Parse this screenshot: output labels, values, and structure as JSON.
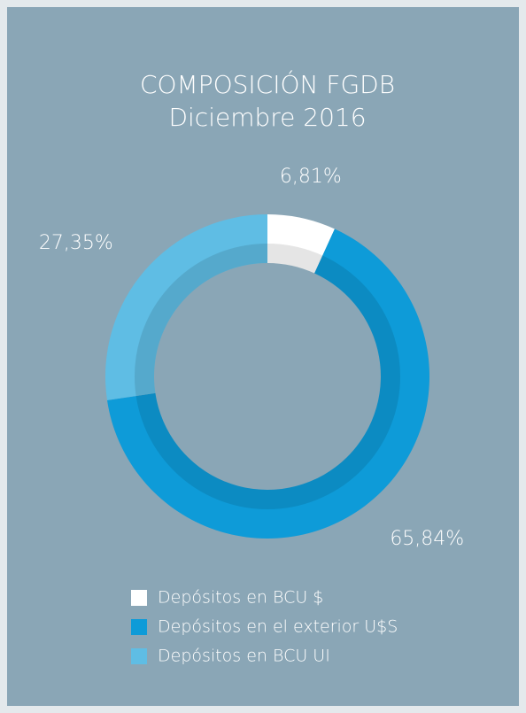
{
  "chart_data": {
    "type": "donut",
    "title": "COMPOSICIÓN FGDB",
    "subtitle": "Diciembre 2016",
    "categories": [
      "Depósitos en BCU $",
      "Depósitos en el exterior U$S",
      "Depósitos en BCU UI"
    ],
    "values": [
      6.81,
      65.84,
      27.35
    ],
    "value_labels": [
      "6,81%",
      "65,84%",
      "27,35%"
    ],
    "colors": [
      "#ffffff",
      "#0e9bd8",
      "#5fbde4"
    ],
    "legend": "bottom"
  }
}
